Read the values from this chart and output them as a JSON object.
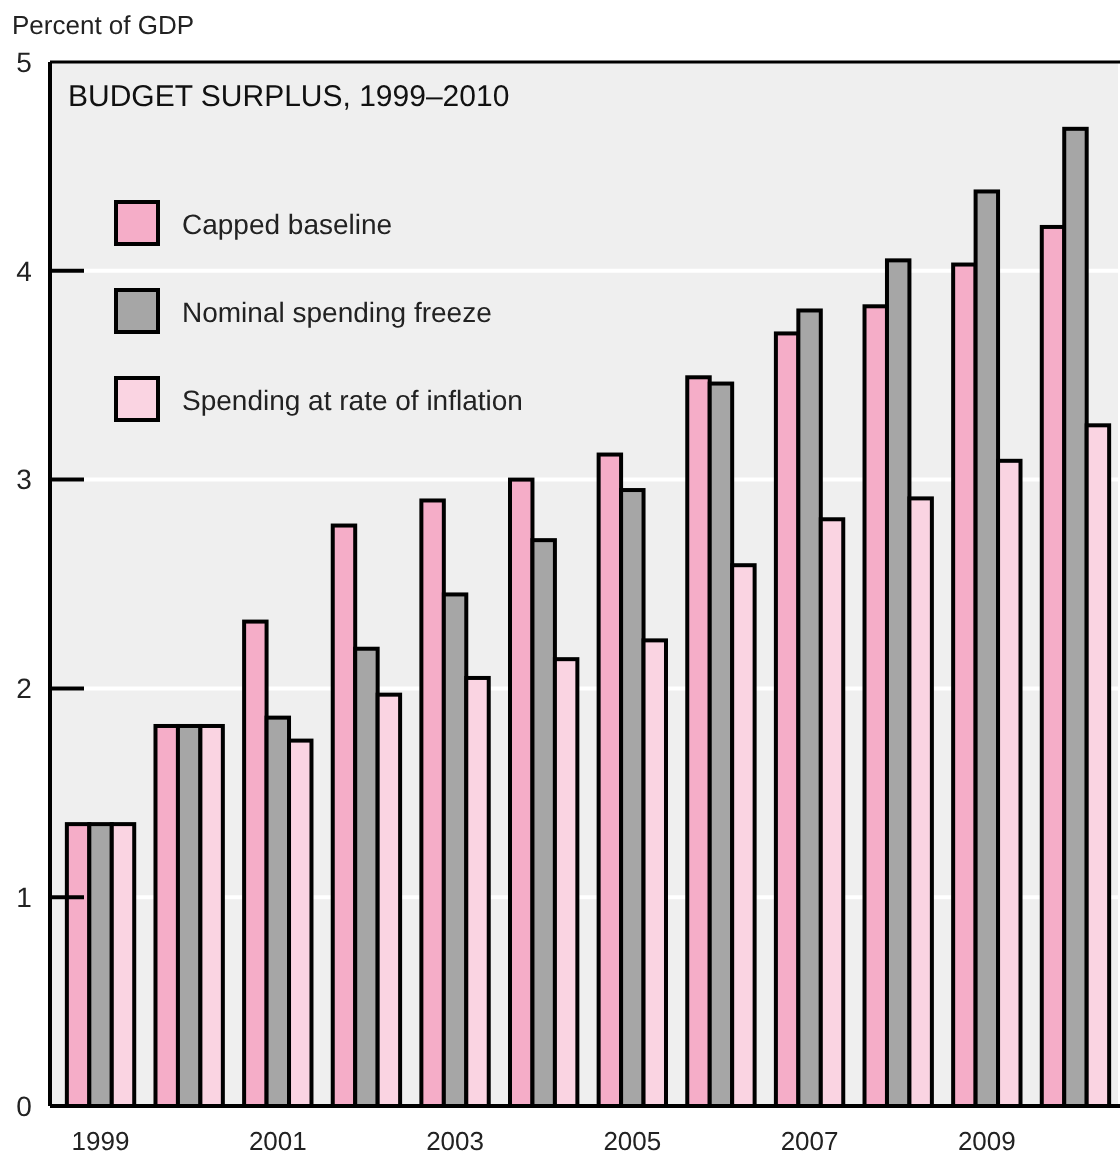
{
  "chart_data": {
    "type": "bar",
    "title": "BUDGET SURPLUS, 1999–2010",
    "ylabel": "Percent of GDP",
    "categories": [
      "1999",
      null,
      "2001",
      null,
      "2003",
      null,
      "2005",
      null,
      "2007",
      null,
      "2009",
      null
    ],
    "series": [
      {
        "name": "Capped baseline",
        "color": "#f5adc8",
        "values": [
          1.35,
          1.82,
          2.32,
          2.78,
          2.9,
          3.0,
          3.12,
          3.49,
          3.7,
          3.83,
          4.03,
          4.21
        ]
      },
      {
        "name": "Nominal spending freeze",
        "color": "#a6a6a6",
        "values": [
          1.35,
          1.82,
          1.86,
          2.19,
          2.45,
          2.71,
          2.95,
          3.46,
          3.81,
          4.05,
          4.38,
          4.68
        ]
      },
      {
        "name": "Spending at rate of inflation",
        "color": "#fad4e2",
        "values": [
          1.35,
          1.82,
          1.75,
          1.97,
          2.05,
          2.14,
          2.23,
          2.59,
          2.81,
          2.91,
          3.09,
          3.26
        ]
      }
    ],
    "ylim": [
      0,
      5
    ],
    "yticks": [
      0,
      1,
      2,
      3,
      4,
      5
    ],
    "grid": "y",
    "legend": "top left"
  }
}
